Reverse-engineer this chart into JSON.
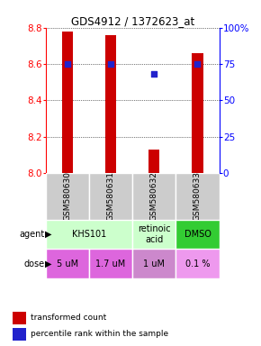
{
  "title": "GDS4912 / 1372623_at",
  "samples": [
    "GSM580630",
    "GSM580631",
    "GSM580632",
    "GSM580633"
  ],
  "bar_values": [
    8.78,
    8.76,
    8.13,
    8.66
  ],
  "bar_base": 8.0,
  "percentile_values": [
    75,
    75,
    68,
    75
  ],
  "ylim": [
    8.0,
    8.8
  ],
  "yticks": [
    8.0,
    8.2,
    8.4,
    8.6,
    8.8
  ],
  "y2lim": [
    0,
    100
  ],
  "y2ticks": [
    0,
    25,
    50,
    75,
    100
  ],
  "y2ticklabels": [
    "0",
    "25",
    "50",
    "75",
    "100%"
  ],
  "bar_color": "#cc0000",
  "dot_color": "#2222cc",
  "agent_groups": [
    {
      "label": "KHS101",
      "start": 0,
      "end": 1,
      "color": "#ccffcc"
    },
    {
      "label": "retinoic\nacid",
      "start": 2,
      "end": 2,
      "color": "#ccffcc"
    },
    {
      "label": "DMSO",
      "start": 3,
      "end": 3,
      "color": "#33cc33"
    }
  ],
  "dose_labels": [
    "5 uM",
    "1.7 uM",
    "1 uM",
    "0.1 %"
  ],
  "dose_colors": [
    "#dd66dd",
    "#dd66dd",
    "#cc88cc",
    "#ee99ee"
  ],
  "sample_bg_color": "#cccccc",
  "legend_bar_label": "transformed count",
  "legend_dot_label": "percentile rank within the sample"
}
